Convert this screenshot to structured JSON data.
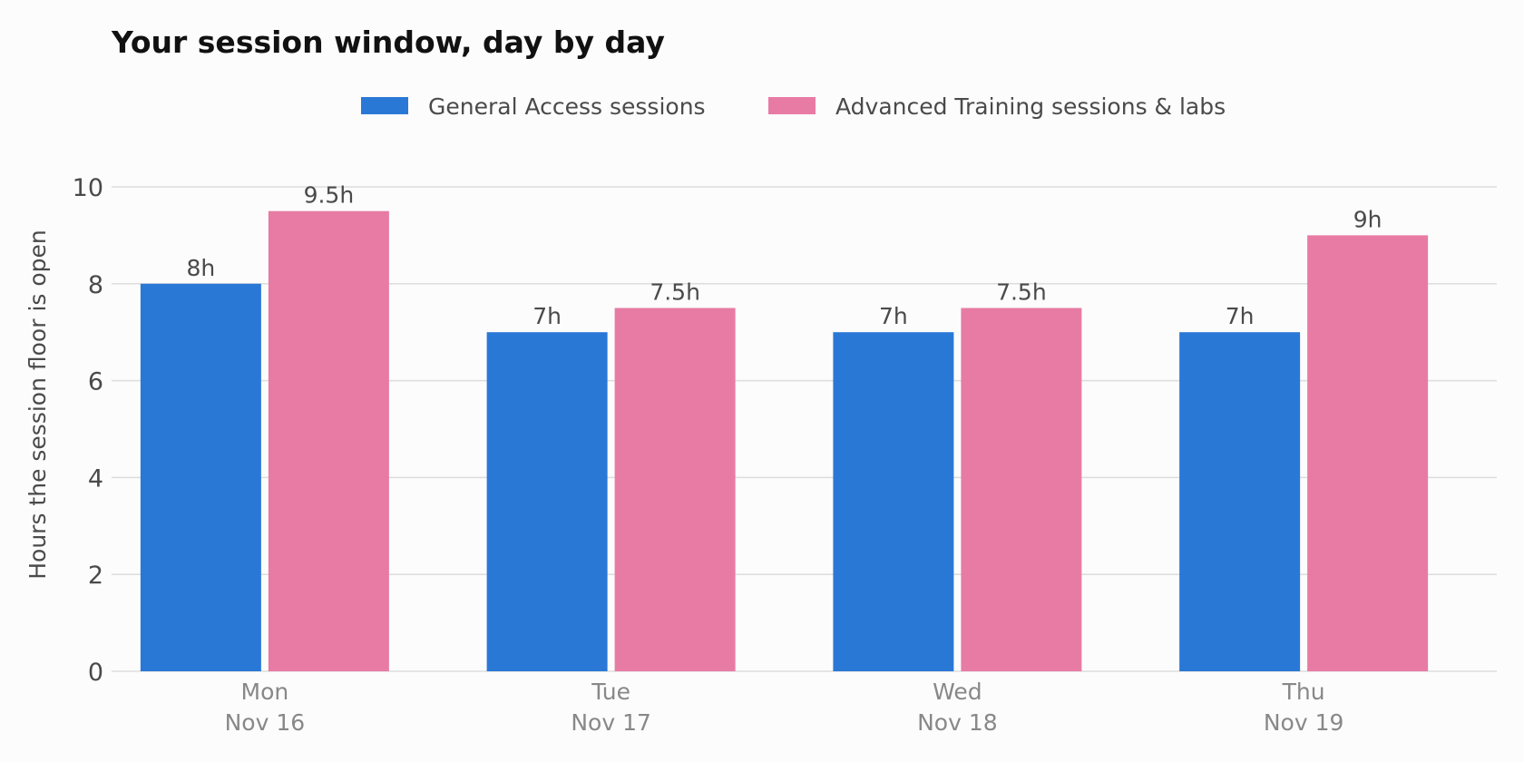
{
  "chart_data": {
    "type": "bar",
    "title": "Your session window, day by day",
    "ylabel": "Hours the session floor is open",
    "xlabel": "",
    "ylim": [
      0,
      10
    ],
    "yticks": [
      0,
      2,
      4,
      6,
      8,
      10
    ],
    "grid": true,
    "legend_position": "top-center",
    "categories": [
      {
        "day": "Mon",
        "date": "Nov 16"
      },
      {
        "day": "Tue",
        "date": "Nov 17"
      },
      {
        "day": "Wed",
        "date": "Nov 18"
      },
      {
        "day": "Thu",
        "date": "Nov 19"
      }
    ],
    "series": [
      {
        "name": "General Access sessions",
        "color": "#2a78d6",
        "values": [
          8,
          7,
          7,
          7
        ],
        "labels": [
          "8h",
          "7h",
          "7h",
          "7h"
        ]
      },
      {
        "name": "Advanced Training sessions & labs",
        "color": "#e87ba4",
        "values": [
          9.5,
          7.5,
          7.5,
          9
        ],
        "labels": [
          "9.5h",
          "7.5h",
          "7.5h",
          "9h"
        ]
      }
    ]
  }
}
